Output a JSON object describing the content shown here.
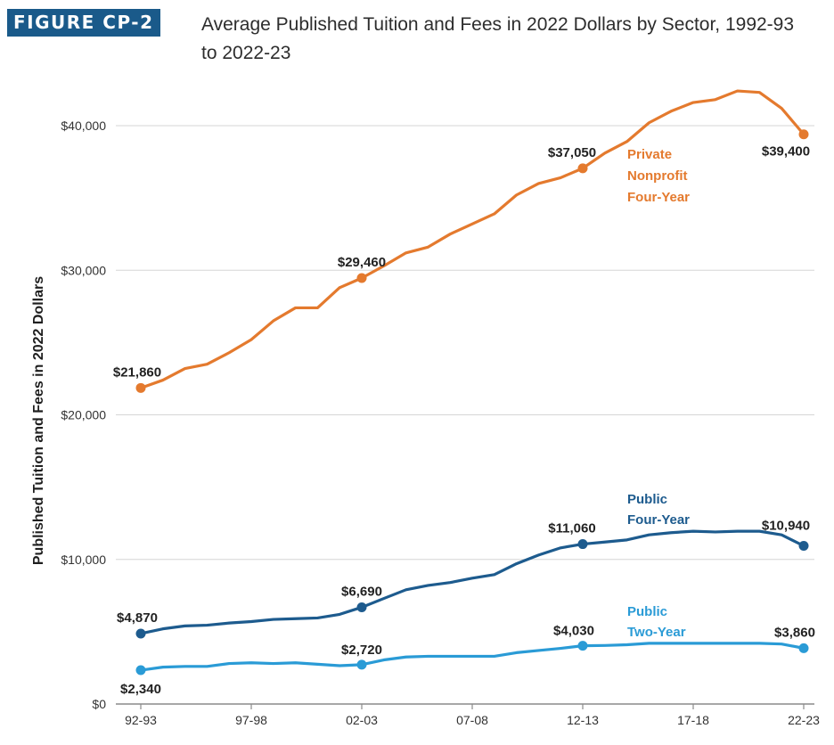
{
  "figure": {
    "badge": "FIGURE CP-2",
    "title": "Average Published Tuition and Fees in 2022 Dollars by Sector, 1992-93 to 2022-23"
  },
  "chart_data": {
    "type": "line",
    "ylabel": "Published Tuition and Fees in 2022 Dollars",
    "ylim": [
      0,
      40000
    ],
    "yticks": [
      {
        "value": 0,
        "label": "$0"
      },
      {
        "value": 10000,
        "label": "$10,000"
      },
      {
        "value": 20000,
        "label": "$20,000"
      },
      {
        "value": 30000,
        "label": "$30,000"
      },
      {
        "value": 40000,
        "label": "$40,000"
      }
    ],
    "x": [
      "92-93",
      "93-94",
      "94-95",
      "95-96",
      "96-97",
      "97-98",
      "98-99",
      "99-00",
      "00-01",
      "01-02",
      "02-03",
      "03-04",
      "04-05",
      "05-06",
      "06-07",
      "07-08",
      "08-09",
      "09-10",
      "10-11",
      "11-12",
      "12-13",
      "13-14",
      "14-15",
      "15-16",
      "16-17",
      "17-18",
      "18-19",
      "19-20",
      "20-21",
      "21-22",
      "22-23"
    ],
    "xtick_labels": [
      "92-93",
      "97-98",
      "02-03",
      "07-08",
      "12-13",
      "17-18",
      "22-23"
    ],
    "grid": true,
    "series": [
      {
        "name": "Private Nonprofit Four-Year",
        "label_lines": [
          "Private",
          "Nonprofit",
          "Four-Year"
        ],
        "color": "#e47a2e",
        "values": [
          21860,
          22400,
          23200,
          23500,
          24300,
          25200,
          26500,
          27400,
          27400,
          28800,
          29460,
          30300,
          31200,
          31600,
          32500,
          33200,
          33900,
          35200,
          36000,
          36400,
          37050,
          38100,
          38900,
          40200,
          41000,
          41600,
          41800,
          42400,
          42300,
          41200,
          39400
        ],
        "labeled_points": [
          {
            "index": 0,
            "label": "$21,860"
          },
          {
            "index": 10,
            "label": "$29,460"
          },
          {
            "index": 20,
            "label": "$37,050"
          },
          {
            "index": 30,
            "label": "$39,400"
          }
        ]
      },
      {
        "name": "Public Four-Year",
        "label_lines": [
          "Public",
          "Four-Year"
        ],
        "color": "#1d5b8e",
        "values": [
          4870,
          5200,
          5400,
          5450,
          5600,
          5700,
          5850,
          5900,
          5950,
          6200,
          6690,
          7300,
          7900,
          8200,
          8400,
          8700,
          8950,
          9700,
          10300,
          10800,
          11060,
          11200,
          11350,
          11700,
          11850,
          11950,
          11900,
          11950,
          11950,
          11700,
          10940
        ],
        "labeled_points": [
          {
            "index": 0,
            "label": "$4,870"
          },
          {
            "index": 10,
            "label": "$6,690"
          },
          {
            "index": 20,
            "label": "$11,060"
          },
          {
            "index": 30,
            "label": "$10,940"
          }
        ]
      },
      {
        "name": "Public Two-Year",
        "label_lines": [
          "Public",
          "Two-Year"
        ],
        "color": "#2a9bd6",
        "values": [
          2340,
          2550,
          2600,
          2600,
          2800,
          2850,
          2800,
          2850,
          2750,
          2650,
          2720,
          3050,
          3250,
          3300,
          3300,
          3300,
          3300,
          3550,
          3700,
          3850,
          4030,
          4050,
          4100,
          4200,
          4200,
          4200,
          4200,
          4200,
          4200,
          4150,
          3860
        ],
        "labeled_points": [
          {
            "index": 0,
            "label": "$2,340"
          },
          {
            "index": 10,
            "label": "$2,720"
          },
          {
            "index": 20,
            "label": "$4,030"
          },
          {
            "index": 30,
            "label": "$3,860"
          }
        ]
      }
    ]
  }
}
